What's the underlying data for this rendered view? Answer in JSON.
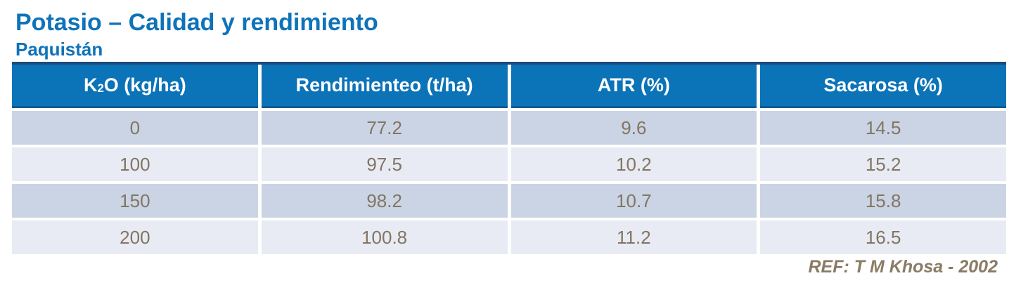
{
  "page": {
    "title": "Potasio – Calidad y rendimiento",
    "subtitle": "Paquistán",
    "reference": "REF: T M Khosa - 2002"
  },
  "colors": {
    "accent_blue": "#0e73b9",
    "header_bg": "#0b73b8",
    "header_border": "#0d5c92",
    "table_top_border": "#1b4c7c",
    "row_dark": "#cbd4e4",
    "row_light": "#e8ebf3",
    "cell_text": "#827563",
    "header_text": "#ffffff",
    "ref_text": "#8a7b65",
    "background": "#ffffff"
  },
  "table": {
    "headers": [
      {
        "prefix": "K",
        "sub": "2",
        "suffix": "O (kg/ha)"
      },
      {
        "label": "Rendimienteo (t/ha)"
      },
      {
        "label": "ATR (%)"
      },
      {
        "label": "Sacarosa (%)"
      }
    ],
    "rows": [
      {
        "cells": [
          "0",
          "77.2",
          "9.6",
          "14.5"
        ]
      },
      {
        "cells": [
          "100",
          "97.5",
          "10.2",
          "15.2"
        ]
      },
      {
        "cells": [
          "150",
          "98.2",
          "10.7",
          "15.8"
        ]
      },
      {
        "cells": [
          "200",
          "100.8",
          "11.2",
          "16.5"
        ]
      }
    ]
  },
  "chart_data": {
    "type": "table",
    "title": "Potasio – Calidad y rendimiento",
    "subtitle": "Paquistán",
    "columns": [
      "K2O (kg/ha)",
      "Rendimienteo (t/ha)",
      "ATR (%)",
      "Sacarosa (%)"
    ],
    "rows": [
      [
        0,
        77.2,
        9.6,
        14.5
      ],
      [
        100,
        97.5,
        10.2,
        15.2
      ],
      [
        150,
        98.2,
        10.7,
        15.8
      ],
      [
        200,
        100.8,
        11.2,
        16.5
      ]
    ],
    "reference": "REF: T M Khosa - 2002"
  }
}
